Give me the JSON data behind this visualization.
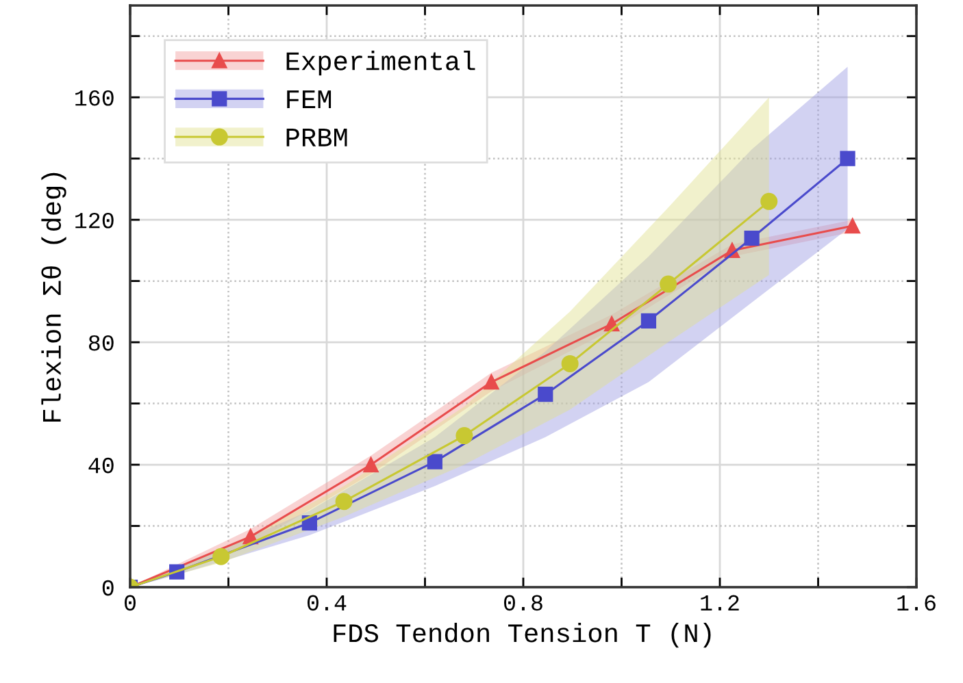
{
  "chart_data": {
    "type": "line",
    "xlabel": "FDS Tendon Tension T (N)",
    "ylabel": "Flexion Σθ (deg)",
    "xlim": [
      0,
      1.6
    ],
    "ylim": [
      0,
      190
    ],
    "xticks": [
      0,
      {
        "value": 0.2,
        "label": null
      },
      0.4,
      {
        "value": 0.6,
        "label": null
      },
      0.8,
      {
        "value": 1.0,
        "label": null
      },
      1.2,
      {
        "value": 1.4,
        "label": null
      },
      1.6
    ],
    "yticks": [
      0,
      {
        "value": 20,
        "label": null
      },
      40,
      {
        "value": 60,
        "label": null
      },
      80,
      {
        "value": 100,
        "label": null
      },
      120,
      {
        "value": 140,
        "label": null
      },
      160,
      {
        "value": 180,
        "label": null
      }
    ],
    "grid": true,
    "legend": "top left",
    "line_style": "solid",
    "series": [
      {
        "name": "Experimental",
        "color": "#e84c4c",
        "marker": "triangle",
        "x": [
          0,
          0.245,
          0.49,
          0.735,
          0.98,
          1.225,
          1.47
        ],
        "values": [
          0,
          16.5,
          40,
          67,
          86,
          110,
          118
        ],
        "lower": [
          0,
          14,
          37,
          64,
          84,
          108,
          116
        ],
        "upper": [
          0,
          19,
          43,
          70,
          89,
          112,
          120
        ]
      },
      {
        "name": "FEM",
        "color": "#4a4acc",
        "marker": "square",
        "x": [
          0,
          0.095,
          0.365,
          0.62,
          0.845,
          1.055,
          1.265,
          1.46
        ],
        "values": [
          0,
          5,
          21,
          41,
          63,
          87,
          114,
          140
        ],
        "lower": [
          0,
          4,
          17,
          33,
          49,
          67,
          93,
          117
        ],
        "upper": [
          0,
          6,
          25,
          49,
          77,
          108,
          143,
          170
        ]
      },
      {
        "name": "PRBM",
        "color": "#c8c832",
        "marker": "circle",
        "x": [
          0,
          0.185,
          0.435,
          0.68,
          0.895,
          1.095,
          1.3
        ],
        "values": [
          0,
          10,
          28,
          49.5,
          73,
          99,
          126
        ],
        "lower": [
          0,
          8,
          23,
          40,
          58,
          80,
          102
        ],
        "upper": [
          0,
          12,
          33,
          59,
          90,
          124,
          160
        ]
      }
    ]
  }
}
